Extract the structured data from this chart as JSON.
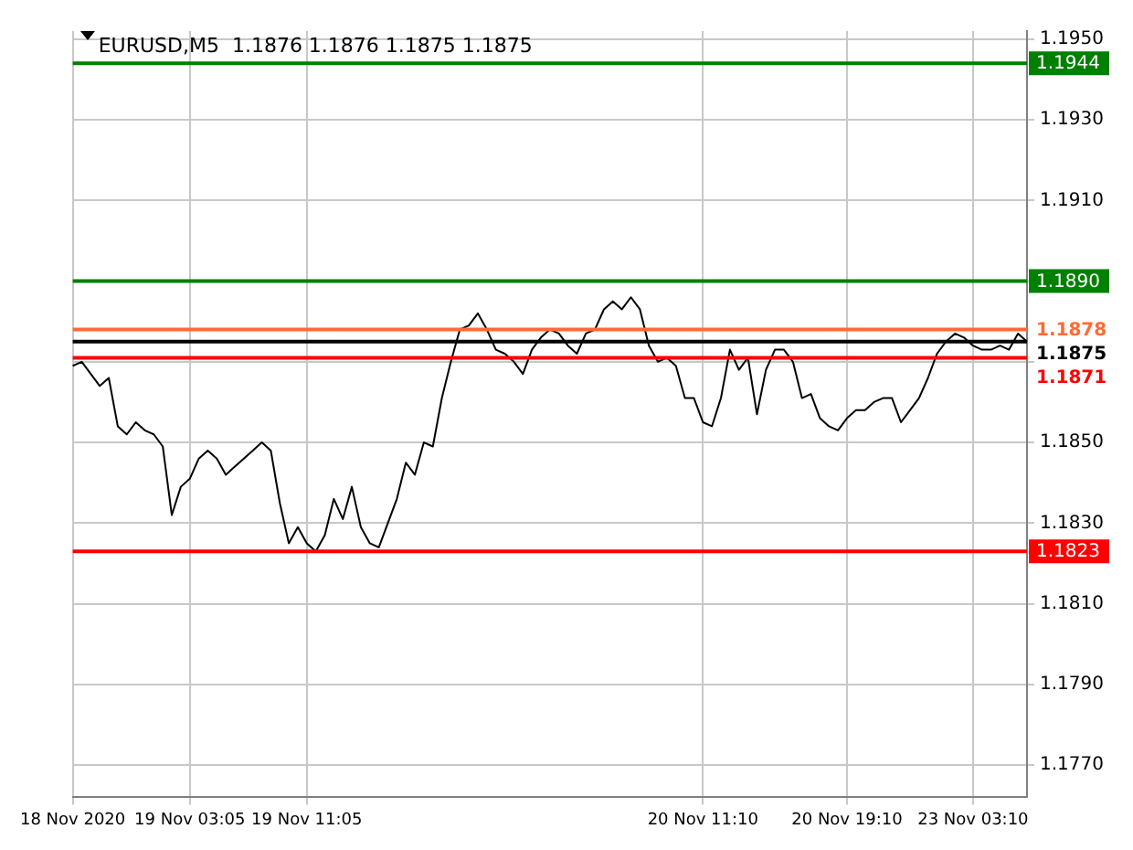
{
  "chart_data": {
    "type": "line",
    "title": "EURUSD,M5  1.1876 1.1876 1.1875 1.1875",
    "legend": false,
    "grid": true,
    "marker": "none",
    "line_style": "solid",
    "categories": [
      "18 Nov 2020",
      null,
      null,
      null,
      null,
      null,
      null,
      null,
      null,
      null,
      null,
      null,
      null,
      "19 Nov 03:05",
      null,
      null,
      null,
      null,
      null,
      null,
      null,
      null,
      null,
      null,
      null,
      null,
      "19 Nov 11:05",
      null,
      null,
      null,
      null,
      null,
      null,
      null,
      null,
      null,
      null,
      null,
      null,
      null,
      null,
      null,
      null,
      null,
      null,
      null,
      null,
      null,
      null,
      null,
      null,
      null,
      null,
      null,
      null,
      null,
      null,
      null,
      null,
      null,
      null,
      null,
      null,
      null,
      null,
      null,
      null,
      null,
      null,
      null,
      "20 Nov 11:10",
      null,
      null,
      null,
      null,
      null,
      null,
      null,
      null,
      null,
      null,
      null,
      null,
      null,
      null,
      null,
      "20 Nov 19:10",
      null,
      null,
      null,
      null,
      null,
      null,
      null,
      null,
      null,
      null,
      null,
      null,
      null,
      "23 Nov 03:10",
      null,
      null,
      null,
      null,
      null,
      null
    ],
    "ylim": [
      1.1762,
      1.1952
    ],
    "yticks": [
      {
        "value": 1.177,
        "label": "1.1770"
      },
      {
        "value": 1.179,
        "label": "1.1790"
      },
      {
        "value": 1.181,
        "label": "1.1810"
      },
      {
        "value": 1.183,
        "label": "1.1830"
      },
      {
        "value": 1.185,
        "label": "1.1850"
      },
      {
        "value": 1.187,
        "label": null
      },
      {
        "value": 1.189,
        "label": null
      },
      {
        "value": 1.191,
        "label": "1.1910"
      },
      {
        "value": 1.193,
        "label": "1.1930"
      },
      {
        "value": 1.195,
        "label": "1.1950"
      }
    ],
    "series": [
      {
        "color": "#000000",
        "values": [
          1.1869,
          1.187,
          1.1867,
          1.1864,
          1.1866,
          1.1854,
          1.1852,
          1.1855,
          1.1853,
          1.1852,
          1.1849,
          1.1832,
          1.1839,
          1.1841,
          1.1846,
          1.1848,
          1.1846,
          1.1842,
          1.1844,
          1.1846,
          1.1848,
          1.185,
          1.1848,
          1.1835,
          1.1825,
          1.1829,
          1.1825,
          1.1823,
          1.1827,
          1.1836,
          1.1831,
          1.1839,
          1.1829,
          1.1825,
          1.1824,
          1.183,
          1.1836,
          1.1845,
          1.1842,
          1.185,
          1.1849,
          1.1861,
          1.187,
          1.1878,
          1.1879,
          1.1882,
          1.1878,
          1.1873,
          1.1872,
          1.187,
          1.1867,
          1.1873,
          1.1876,
          1.1878,
          1.1877,
          1.1874,
          1.1872,
          1.1877,
          1.1878,
          1.1883,
          1.1885,
          1.1883,
          1.1886,
          1.1883,
          1.1874,
          1.187,
          1.1871,
          1.1869,
          1.1861,
          1.1861,
          1.1855,
          1.1854,
          1.1861,
          1.1873,
          1.1868,
          1.1871,
          1.1857,
          1.1868,
          1.1873,
          1.1873,
          1.187,
          1.1861,
          1.1862,
          1.1856,
          1.1854,
          1.1853,
          1.1856,
          1.1858,
          1.1858,
          1.186,
          1.1861,
          1.1861,
          1.1855,
          1.1858,
          1.1861,
          1.1866,
          1.1872,
          1.1875,
          1.1877,
          1.1876,
          1.1874,
          1.1873,
          1.1873,
          1.1874,
          1.1873,
          1.1877,
          1.1875
        ]
      }
    ],
    "ref_lines": [
      {
        "axis": "y",
        "value": 1.1944,
        "label": "1.1944",
        "color": "#008000"
      },
      {
        "axis": "y",
        "value": 1.189,
        "label": "1.1890",
        "color": "#008000"
      },
      {
        "axis": "y",
        "value": 1.1878,
        "label": "1.1878",
        "color": "#ff6a33"
      },
      {
        "axis": "y",
        "value": 1.1875,
        "label": "1.1875",
        "color": "#000000"
      },
      {
        "axis": "y",
        "value": 1.1871,
        "label": "1.1871",
        "color": "#ff0000"
      },
      {
        "axis": "y",
        "value": 1.1823,
        "label": "1.1823",
        "color": "#ff0000"
      }
    ]
  }
}
